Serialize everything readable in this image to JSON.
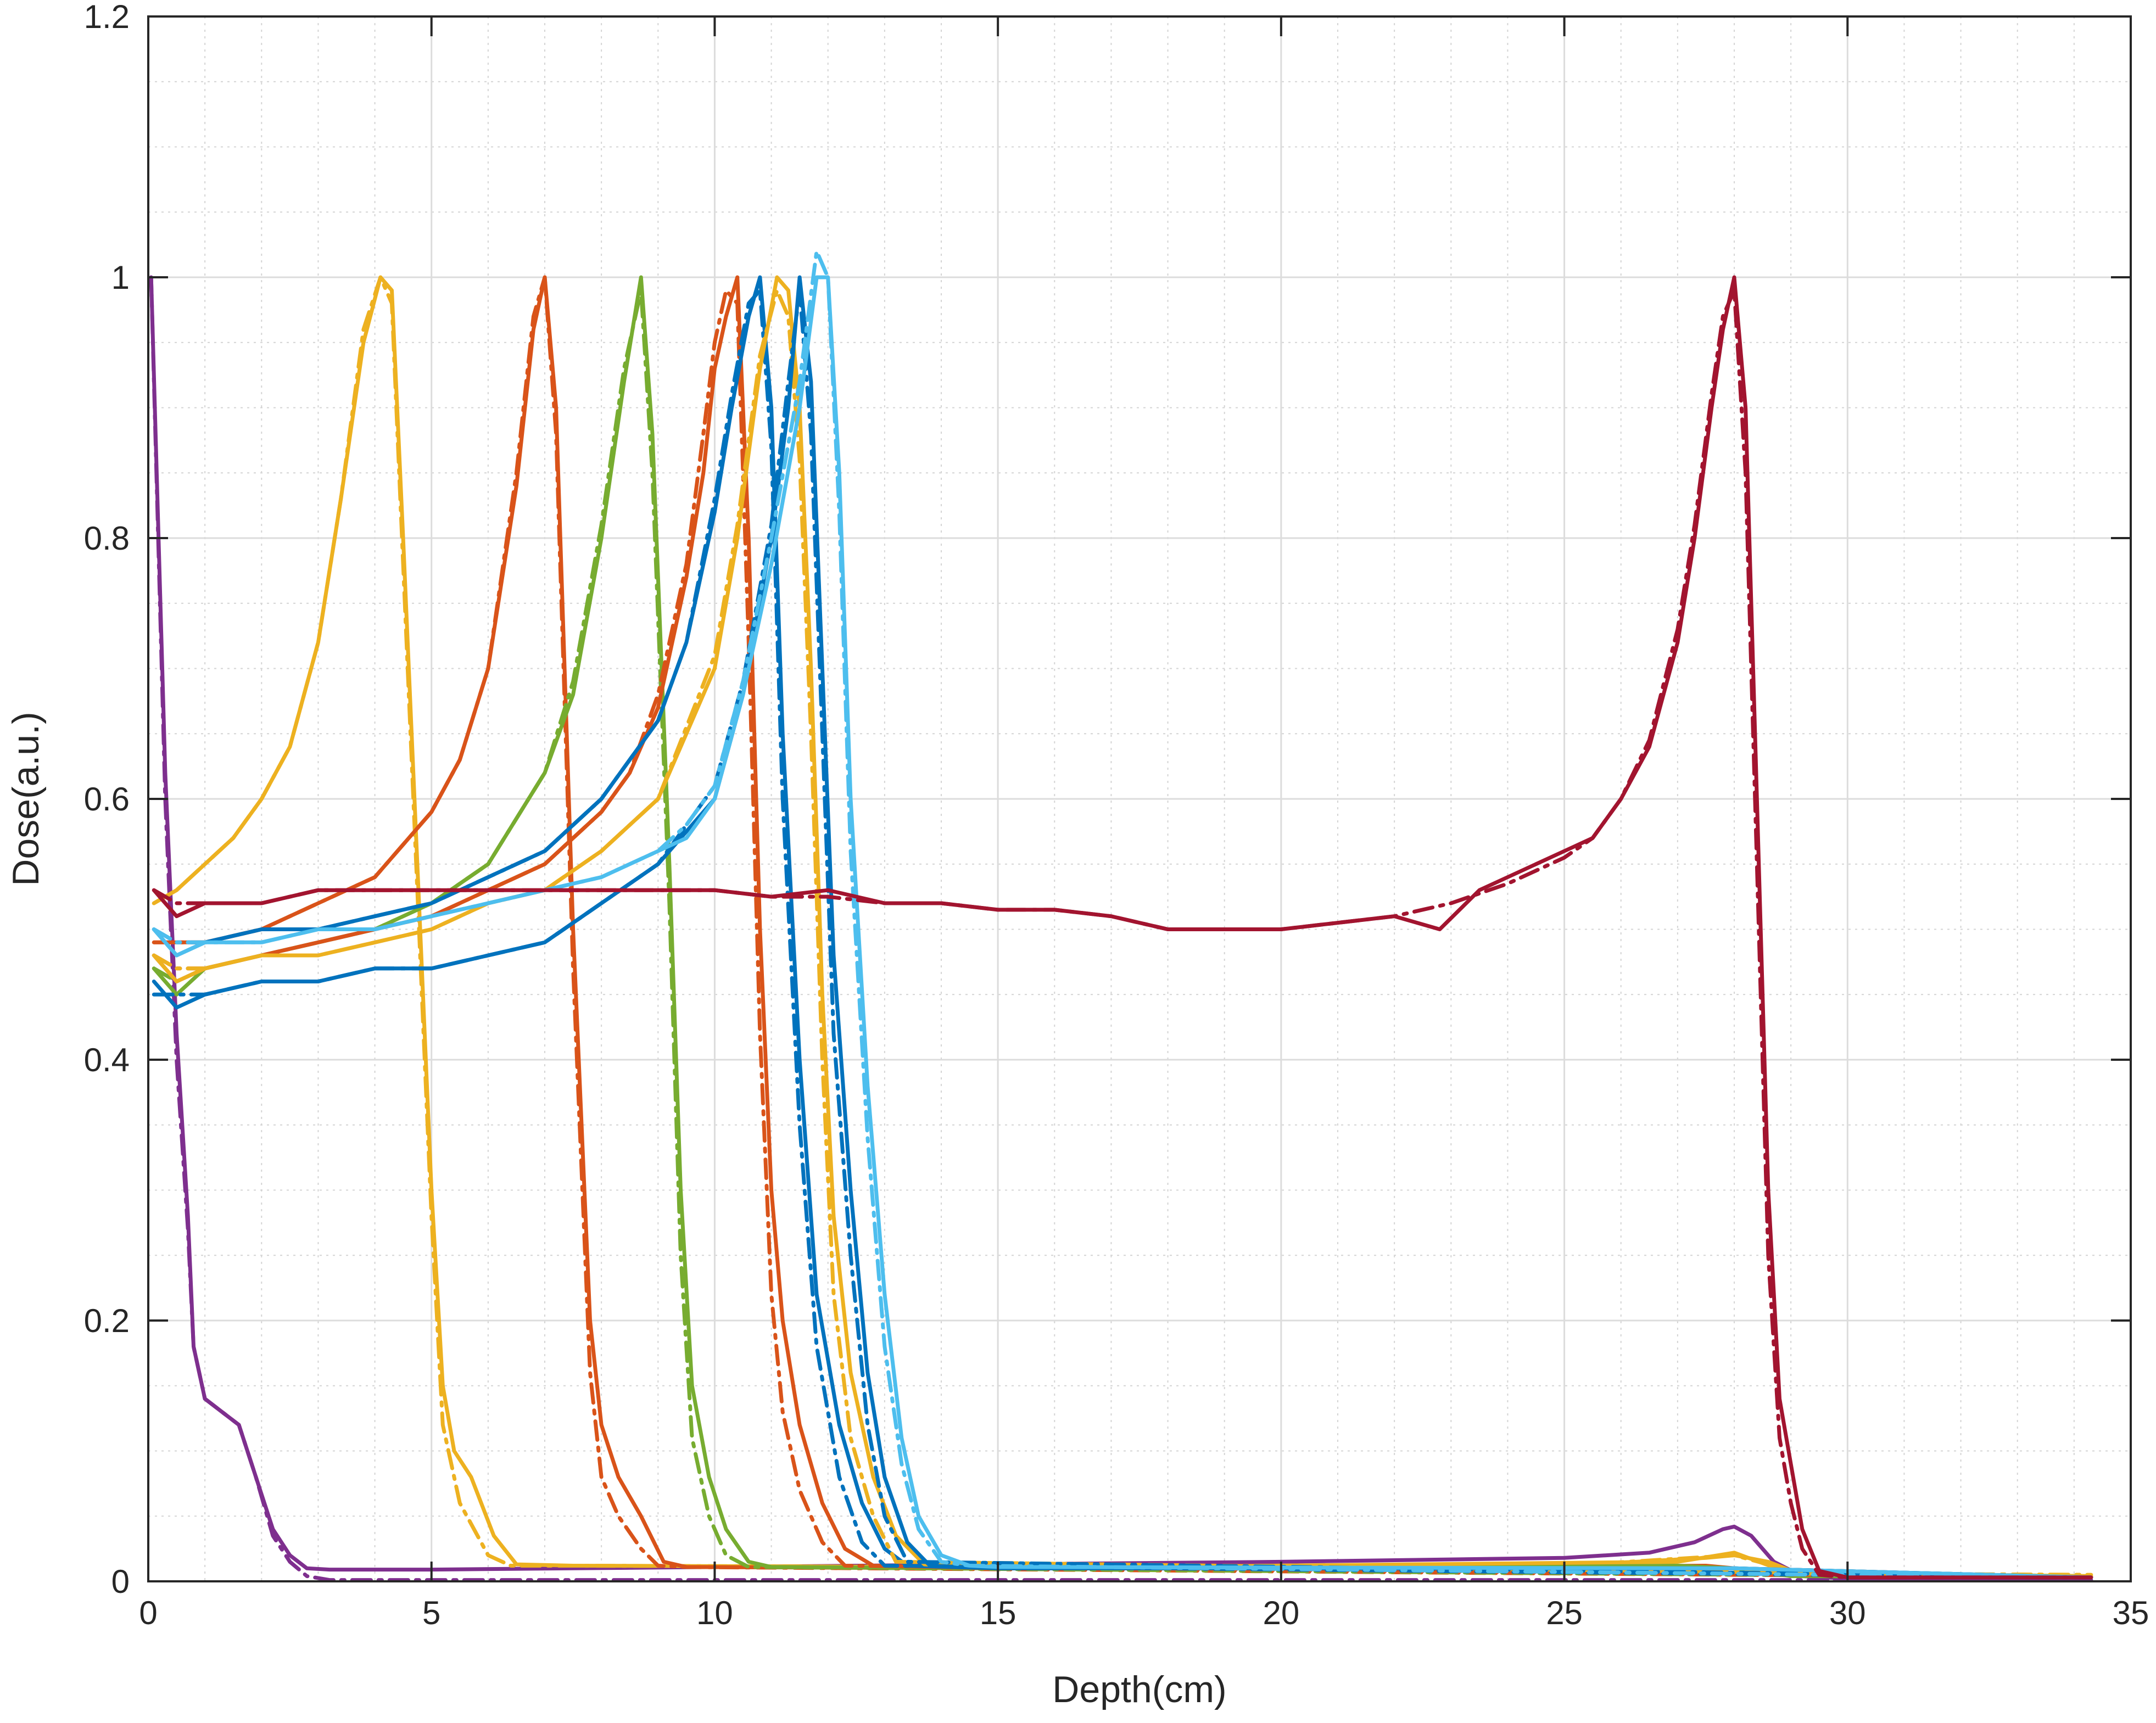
{
  "chart_data": {
    "type": "line",
    "title": "",
    "xlabel": "Depth(cm)",
    "ylabel": "Dose(a.u.)",
    "xlim": [
      0,
      35
    ],
    "ylim": [
      0,
      1.2
    ],
    "xticks": [
      0,
      5,
      10,
      15,
      20,
      25,
      30,
      35
    ],
    "yticks": [
      0,
      0.2,
      0.4,
      0.6,
      0.8,
      1,
      1.2
    ],
    "xtick_labels": [
      "0",
      "5",
      "10",
      "15",
      "20",
      "25",
      "30",
      "35"
    ],
    "ytick_labels": [
      "0",
      "0.2",
      "0.4",
      "0.6",
      "0.8",
      "1",
      "1.2"
    ],
    "grid": true,
    "minor_grid": true,
    "legend": "none",
    "series": [
      {
        "color": "#7E2F8E",
        "style": "solid",
        "x": [
          0.05,
          0.3,
          0.5,
          0.7,
          0.8,
          1.0,
          1.3,
          1.6,
          1.9,
          2.2,
          2.5,
          2.8,
          3.2,
          5,
          10,
          15,
          20,
          25,
          26.5,
          27.3,
          27.8,
          28.0,
          28.3,
          28.7,
          29.2,
          30,
          34.3
        ],
        "y": [
          1.0,
          0.62,
          0.42,
          0.28,
          0.18,
          0.14,
          0.13,
          0.12,
          0.08,
          0.04,
          0.02,
          0.01,
          0.009,
          0.009,
          0.011,
          0.013,
          0.015,
          0.018,
          0.022,
          0.03,
          0.04,
          0.042,
          0.035,
          0.015,
          0.004,
          0.002,
          0.001
        ]
      },
      {
        "color": "#7E2F8E",
        "style": "dashdot",
        "x": [
          0.05,
          0.3,
          0.5,
          0.7,
          0.8,
          1.0,
          1.3,
          1.6,
          1.9,
          2.2,
          2.5,
          2.8,
          3.2,
          5,
          34.3
        ],
        "y": [
          1.0,
          0.6,
          0.4,
          0.27,
          0.18,
          0.14,
          0.13,
          0.12,
          0.08,
          0.035,
          0.015,
          0.004,
          0.001,
          0.001,
          0.001
        ]
      },
      {
        "color": "#EDB120",
        "style": "solid",
        "x": [
          0.1,
          0.5,
          1.0,
          1.5,
          2.0,
          2.5,
          3.0,
          3.4,
          3.8,
          4.1,
          4.3,
          4.5,
          4.8,
          5.0,
          5.2,
          5.4,
          5.7,
          6.1,
          6.5,
          7.5,
          15,
          25,
          27.5,
          28.0,
          28.6,
          29.2,
          34.3
        ],
        "y": [
          0.52,
          0.53,
          0.55,
          0.57,
          0.6,
          0.64,
          0.72,
          0.83,
          0.95,
          1.0,
          0.99,
          0.8,
          0.5,
          0.3,
          0.15,
          0.1,
          0.08,
          0.035,
          0.013,
          0.012,
          0.011,
          0.012,
          0.018,
          0.02,
          0.015,
          0.005,
          0.004
        ]
      },
      {
        "color": "#EDB120",
        "style": "dashdot",
        "x": [
          0.1,
          0.5,
          1.0,
          1.5,
          2.0,
          2.5,
          3.0,
          3.4,
          3.8,
          4.1,
          4.3,
          4.5,
          4.8,
          5.0,
          5.2,
          5.5,
          6.0,
          6.4,
          7.5,
          15,
          25,
          28.0,
          29.2,
          34.3
        ],
        "y": [
          0.52,
          0.53,
          0.55,
          0.57,
          0.6,
          0.64,
          0.72,
          0.83,
          0.96,
          1.0,
          0.98,
          0.78,
          0.48,
          0.28,
          0.12,
          0.06,
          0.02,
          0.012,
          0.012,
          0.011,
          0.012,
          0.02,
          0.006,
          0.005
        ]
      },
      {
        "color": "#D95319",
        "style": "solid",
        "x": [
          0.1,
          1.0,
          2.0,
          3.0,
          4.0,
          5.0,
          5.5,
          6.0,
          6.5,
          6.8,
          7.0,
          7.2,
          7.5,
          7.8,
          8.0,
          8.3,
          8.7,
          9.1,
          9.5,
          15,
          27.5,
          28.5,
          34.3
        ],
        "y": [
          0.49,
          0.49,
          0.5,
          0.52,
          0.54,
          0.59,
          0.63,
          0.7,
          0.84,
          0.96,
          1.0,
          0.9,
          0.5,
          0.2,
          0.12,
          0.08,
          0.05,
          0.015,
          0.011,
          0.01,
          0.012,
          0.008,
          0.003
        ]
      },
      {
        "color": "#D95319",
        "style": "dashdot",
        "x": [
          0.1,
          1.0,
          2.0,
          3.0,
          4.0,
          5.0,
          5.5,
          6.0,
          6.5,
          6.8,
          7.0,
          7.2,
          7.5,
          7.8,
          8.0,
          8.3,
          8.7,
          9.0,
          9.5,
          34.3
        ],
        "y": [
          0.49,
          0.49,
          0.5,
          0.52,
          0.54,
          0.59,
          0.63,
          0.7,
          0.85,
          0.97,
          1.0,
          0.88,
          0.47,
          0.16,
          0.08,
          0.05,
          0.025,
          0.012,
          0.011,
          0.003
        ]
      },
      {
        "color": "#77AC30",
        "style": "solid",
        "x": [
          0.1,
          0.5,
          1.0,
          2.0,
          3.0,
          4.0,
          5.0,
          6.0,
          7.0,
          7.5,
          8.0,
          8.4,
          8.7,
          8.9,
          9.2,
          9.4,
          9.6,
          9.9,
          10.2,
          10.6,
          11.0,
          15,
          27.0,
          28.0,
          29.0,
          34.3
        ],
        "y": [
          0.47,
          0.45,
          0.47,
          0.48,
          0.49,
          0.5,
          0.52,
          0.55,
          0.62,
          0.68,
          0.8,
          0.92,
          1.0,
          0.88,
          0.55,
          0.3,
          0.15,
          0.08,
          0.04,
          0.015,
          0.011,
          0.01,
          0.012,
          0.01,
          0.004,
          0.003
        ]
      },
      {
        "color": "#77AC30",
        "style": "dashdot",
        "x": [
          0.1,
          0.5,
          1.0,
          2.0,
          3.0,
          4.0,
          5.0,
          6.0,
          7.0,
          7.5,
          8.0,
          8.4,
          8.7,
          8.9,
          9.2,
          9.4,
          9.6,
          9.9,
          10.2,
          10.6,
          34.3
        ],
        "y": [
          0.47,
          0.46,
          0.47,
          0.48,
          0.49,
          0.5,
          0.52,
          0.55,
          0.62,
          0.69,
          0.81,
          0.93,
          0.99,
          0.85,
          0.52,
          0.25,
          0.11,
          0.05,
          0.02,
          0.011,
          0.003
        ]
      },
      {
        "color": "#D95319",
        "style": "solid",
        "x": [
          0.1,
          0.5,
          1.0,
          2.0,
          3.0,
          4.0,
          5.0,
          6.0,
          7.0,
          8.0,
          8.5,
          9.0,
          9.5,
          9.8,
          10.0,
          10.2,
          10.4,
          10.6,
          10.8,
          11.0,
          11.2,
          11.5,
          11.9,
          12.3,
          12.8,
          15,
          28.0,
          34.3
        ],
        "y": [
          0.48,
          0.46,
          0.47,
          0.48,
          0.49,
          0.5,
          0.51,
          0.53,
          0.55,
          0.59,
          0.62,
          0.67,
          0.77,
          0.85,
          0.93,
          0.97,
          1.0,
          0.8,
          0.5,
          0.3,
          0.2,
          0.12,
          0.06,
          0.025,
          0.012,
          0.01,
          0.01,
          0.003
        ]
      },
      {
        "color": "#D95319",
        "style": "dashdot",
        "x": [
          0.1,
          0.5,
          1.0,
          2.0,
          3.0,
          4.0,
          5.0,
          6.0,
          7.0,
          8.0,
          8.5,
          9.0,
          9.5,
          9.8,
          10.0,
          10.2,
          10.4,
          10.6,
          10.8,
          11.0,
          11.2,
          11.5,
          11.9,
          12.3,
          34.3
        ],
        "y": [
          0.48,
          0.47,
          0.47,
          0.48,
          0.49,
          0.5,
          0.51,
          0.53,
          0.55,
          0.59,
          0.62,
          0.68,
          0.78,
          0.88,
          0.95,
          0.99,
          0.98,
          0.72,
          0.42,
          0.22,
          0.13,
          0.07,
          0.03,
          0.012,
          0.003
        ]
      },
      {
        "color": "#0072BD",
        "style": "solid",
        "x": [
          0.1,
          0.5,
          1.0,
          2.0,
          3.0,
          4.0,
          5.0,
          6.0,
          7.0,
          8.0,
          9.0,
          9.5,
          10.0,
          10.3,
          10.6,
          10.8,
          11.0,
          11.2,
          11.5,
          11.8,
          12.2,
          12.6,
          13.0,
          13.4,
          15,
          28.0,
          34.3
        ],
        "y": [
          0.5,
          0.48,
          0.49,
          0.5,
          0.5,
          0.51,
          0.52,
          0.54,
          0.56,
          0.6,
          0.66,
          0.72,
          0.82,
          0.9,
          0.97,
          1.0,
          0.9,
          0.65,
          0.4,
          0.22,
          0.12,
          0.06,
          0.025,
          0.012,
          0.01,
          0.01,
          0.003
        ]
      },
      {
        "color": "#0072BD",
        "style": "dashdot",
        "x": [
          0.1,
          0.5,
          1.0,
          2.0,
          3.0,
          4.0,
          5.0,
          6.0,
          7.0,
          8.0,
          9.0,
          9.5,
          10.0,
          10.3,
          10.6,
          10.8,
          11.0,
          11.2,
          11.5,
          11.8,
          12.2,
          12.6,
          13.0,
          34.3
        ],
        "y": [
          0.5,
          0.49,
          0.49,
          0.5,
          0.5,
          0.51,
          0.52,
          0.54,
          0.56,
          0.6,
          0.66,
          0.72,
          0.83,
          0.91,
          0.98,
          0.99,
          0.87,
          0.6,
          0.35,
          0.18,
          0.08,
          0.03,
          0.012,
          0.003
        ]
      },
      {
        "color": "#EDB120",
        "style": "solid",
        "x": [
          0.1,
          0.5,
          1.0,
          2.0,
          3.0,
          4.0,
          5.0,
          6.0,
          7.0,
          8.0,
          9.0,
          10.0,
          10.4,
          10.8,
          11.1,
          11.3,
          11.5,
          11.7,
          11.9,
          12.1,
          12.4,
          12.8,
          13.2,
          13.7,
          15,
          27.0,
          28.0,
          29.0,
          34.3
        ],
        "y": [
          0.48,
          0.46,
          0.47,
          0.48,
          0.48,
          0.49,
          0.5,
          0.52,
          0.53,
          0.56,
          0.6,
          0.7,
          0.8,
          0.93,
          1.0,
          0.99,
          0.9,
          0.7,
          0.45,
          0.28,
          0.16,
          0.08,
          0.035,
          0.013,
          0.01,
          0.015,
          0.022,
          0.006,
          0.004
        ]
      },
      {
        "color": "#EDB120",
        "style": "dashdot",
        "x": [
          0.1,
          0.5,
          1.0,
          2.0,
          3.0,
          4.0,
          5.0,
          6.0,
          7.0,
          8.0,
          9.0,
          10.0,
          10.4,
          10.8,
          11.1,
          11.3,
          11.5,
          11.7,
          11.9,
          12.1,
          12.4,
          12.8,
          13.2,
          34.3
        ],
        "y": [
          0.48,
          0.47,
          0.47,
          0.48,
          0.48,
          0.49,
          0.5,
          0.52,
          0.53,
          0.56,
          0.6,
          0.71,
          0.81,
          0.94,
          0.99,
          0.97,
          0.86,
          0.65,
          0.4,
          0.22,
          0.11,
          0.05,
          0.015,
          0.004
        ]
      },
      {
        "color": "#0072BD",
        "style": "solid",
        "x": [
          0.1,
          0.5,
          1.0,
          2.0,
          3.0,
          4.0,
          5.0,
          6.0,
          7.0,
          8.0,
          9.0,
          10.0,
          10.5,
          11.0,
          11.3,
          11.5,
          11.7,
          11.9,
          12.1,
          12.4,
          12.7,
          13.0,
          13.4,
          13.8,
          15,
          28.0,
          34.3
        ],
        "y": [
          0.46,
          0.44,
          0.45,
          0.46,
          0.46,
          0.47,
          0.47,
          0.48,
          0.49,
          0.52,
          0.55,
          0.6,
          0.68,
          0.8,
          0.9,
          1.0,
          0.92,
          0.7,
          0.48,
          0.3,
          0.16,
          0.08,
          0.03,
          0.012,
          0.01,
          0.01,
          0.003
        ]
      },
      {
        "color": "#0072BD",
        "style": "dashdot",
        "x": [
          0.1,
          0.5,
          1.0,
          2.0,
          3.0,
          4.0,
          5.0,
          6.0,
          7.0,
          8.0,
          9.0,
          10.0,
          10.5,
          11.0,
          11.3,
          11.5,
          11.7,
          11.9,
          12.1,
          12.4,
          12.7,
          13.0,
          13.4,
          34.3
        ],
        "y": [
          0.45,
          0.45,
          0.45,
          0.46,
          0.46,
          0.47,
          0.47,
          0.48,
          0.49,
          0.52,
          0.55,
          0.61,
          0.69,
          0.81,
          0.92,
          0.99,
          0.88,
          0.65,
          0.42,
          0.25,
          0.12,
          0.05,
          0.015,
          0.003
        ]
      },
      {
        "color": "#4DBEEE",
        "style": "solid",
        "x": [
          0.1,
          0.5,
          1.0,
          2.0,
          3.0,
          4.0,
          5.0,
          6.0,
          7.0,
          8.0,
          9.0,
          9.5,
          10.0,
          10.5,
          11.0,
          11.5,
          11.8,
          12.0,
          12.2,
          12.4,
          12.7,
          13.0,
          13.3,
          13.6,
          14.0,
          14.5,
          15,
          28.0,
          34.3
        ],
        "y": [
          0.5,
          0.48,
          0.49,
          0.49,
          0.5,
          0.5,
          0.51,
          0.52,
          0.53,
          0.54,
          0.56,
          0.57,
          0.6,
          0.68,
          0.78,
          0.9,
          1.0,
          1.0,
          0.85,
          0.6,
          0.38,
          0.22,
          0.11,
          0.05,
          0.02,
          0.012,
          0.011,
          0.01,
          0.003
        ]
      },
      {
        "color": "#4DBEEE",
        "style": "dashdot",
        "x": [
          0.1,
          0.5,
          1.0,
          2.0,
          3.0,
          4.0,
          5.0,
          6.0,
          7.0,
          8.0,
          9.0,
          9.5,
          10.0,
          10.5,
          11.0,
          11.5,
          11.8,
          12.0,
          12.2,
          12.4,
          12.7,
          13.0,
          13.3,
          13.6,
          14.0,
          14.5,
          34.3
        ],
        "y": [
          0.5,
          0.49,
          0.49,
          0.49,
          0.5,
          0.5,
          0.51,
          0.52,
          0.53,
          0.54,
          0.56,
          0.58,
          0.61,
          0.69,
          0.8,
          0.92,
          1.02,
          1.0,
          0.82,
          0.56,
          0.34,
          0.18,
          0.09,
          0.04,
          0.015,
          0.012,
          0.003
        ]
      },
      {
        "color": "#A2142F",
        "style": "solid",
        "x": [
          0.1,
          0.5,
          1.0,
          2.0,
          3.0,
          4.0,
          5.0,
          6.0,
          7.0,
          8.0,
          9.0,
          10.0,
          11.0,
          12.0,
          13.0,
          14.0,
          15.0,
          16.0,
          17.0,
          18.0,
          19.0,
          20.0,
          21.0,
          22.0,
          22.8,
          23.5,
          24.0,
          25.0,
          25.5,
          26.0,
          26.5,
          27.0,
          27.3,
          27.6,
          27.8,
          28.0,
          28.2,
          28.4,
          28.6,
          28.8,
          29.0,
          29.2,
          29.5,
          30.0,
          34.3
        ],
        "y": [
          0.53,
          0.51,
          0.52,
          0.52,
          0.53,
          0.53,
          0.53,
          0.53,
          0.53,
          0.53,
          0.53,
          0.53,
          0.525,
          0.53,
          0.52,
          0.52,
          0.515,
          0.515,
          0.51,
          0.5,
          0.5,
          0.5,
          0.505,
          0.51,
          0.5,
          0.53,
          0.54,
          0.56,
          0.57,
          0.6,
          0.64,
          0.72,
          0.8,
          0.9,
          0.96,
          1.0,
          0.9,
          0.6,
          0.3,
          0.14,
          0.09,
          0.04,
          0.008,
          0.003,
          0.003
        ]
      },
      {
        "color": "#A2142F",
        "style": "dashdot",
        "x": [
          0.1,
          0.5,
          1.0,
          2.0,
          3.0,
          4.0,
          5.0,
          6.0,
          7.0,
          8.0,
          9.0,
          10.0,
          11.0,
          12.0,
          13.0,
          14.0,
          15.0,
          16.0,
          17.0,
          18.0,
          19.0,
          20.0,
          21.0,
          22.0,
          23.0,
          24.0,
          25.0,
          25.5,
          26.0,
          26.5,
          27.0,
          27.3,
          27.6,
          27.8,
          28.0,
          28.2,
          28.4,
          28.6,
          28.8,
          29.0,
          29.2,
          29.5,
          30.0,
          34.3
        ],
        "y": [
          0.53,
          0.52,
          0.52,
          0.52,
          0.53,
          0.53,
          0.53,
          0.53,
          0.53,
          0.53,
          0.53,
          0.53,
          0.525,
          0.525,
          0.52,
          0.52,
          0.515,
          0.515,
          0.51,
          0.5,
          0.5,
          0.5,
          0.505,
          0.51,
          0.52,
          0.535,
          0.555,
          0.57,
          0.6,
          0.645,
          0.73,
          0.81,
          0.91,
          0.97,
          0.99,
          0.85,
          0.55,
          0.25,
          0.11,
          0.06,
          0.025,
          0.005,
          0.003,
          0.003
        ]
      }
    ]
  }
}
